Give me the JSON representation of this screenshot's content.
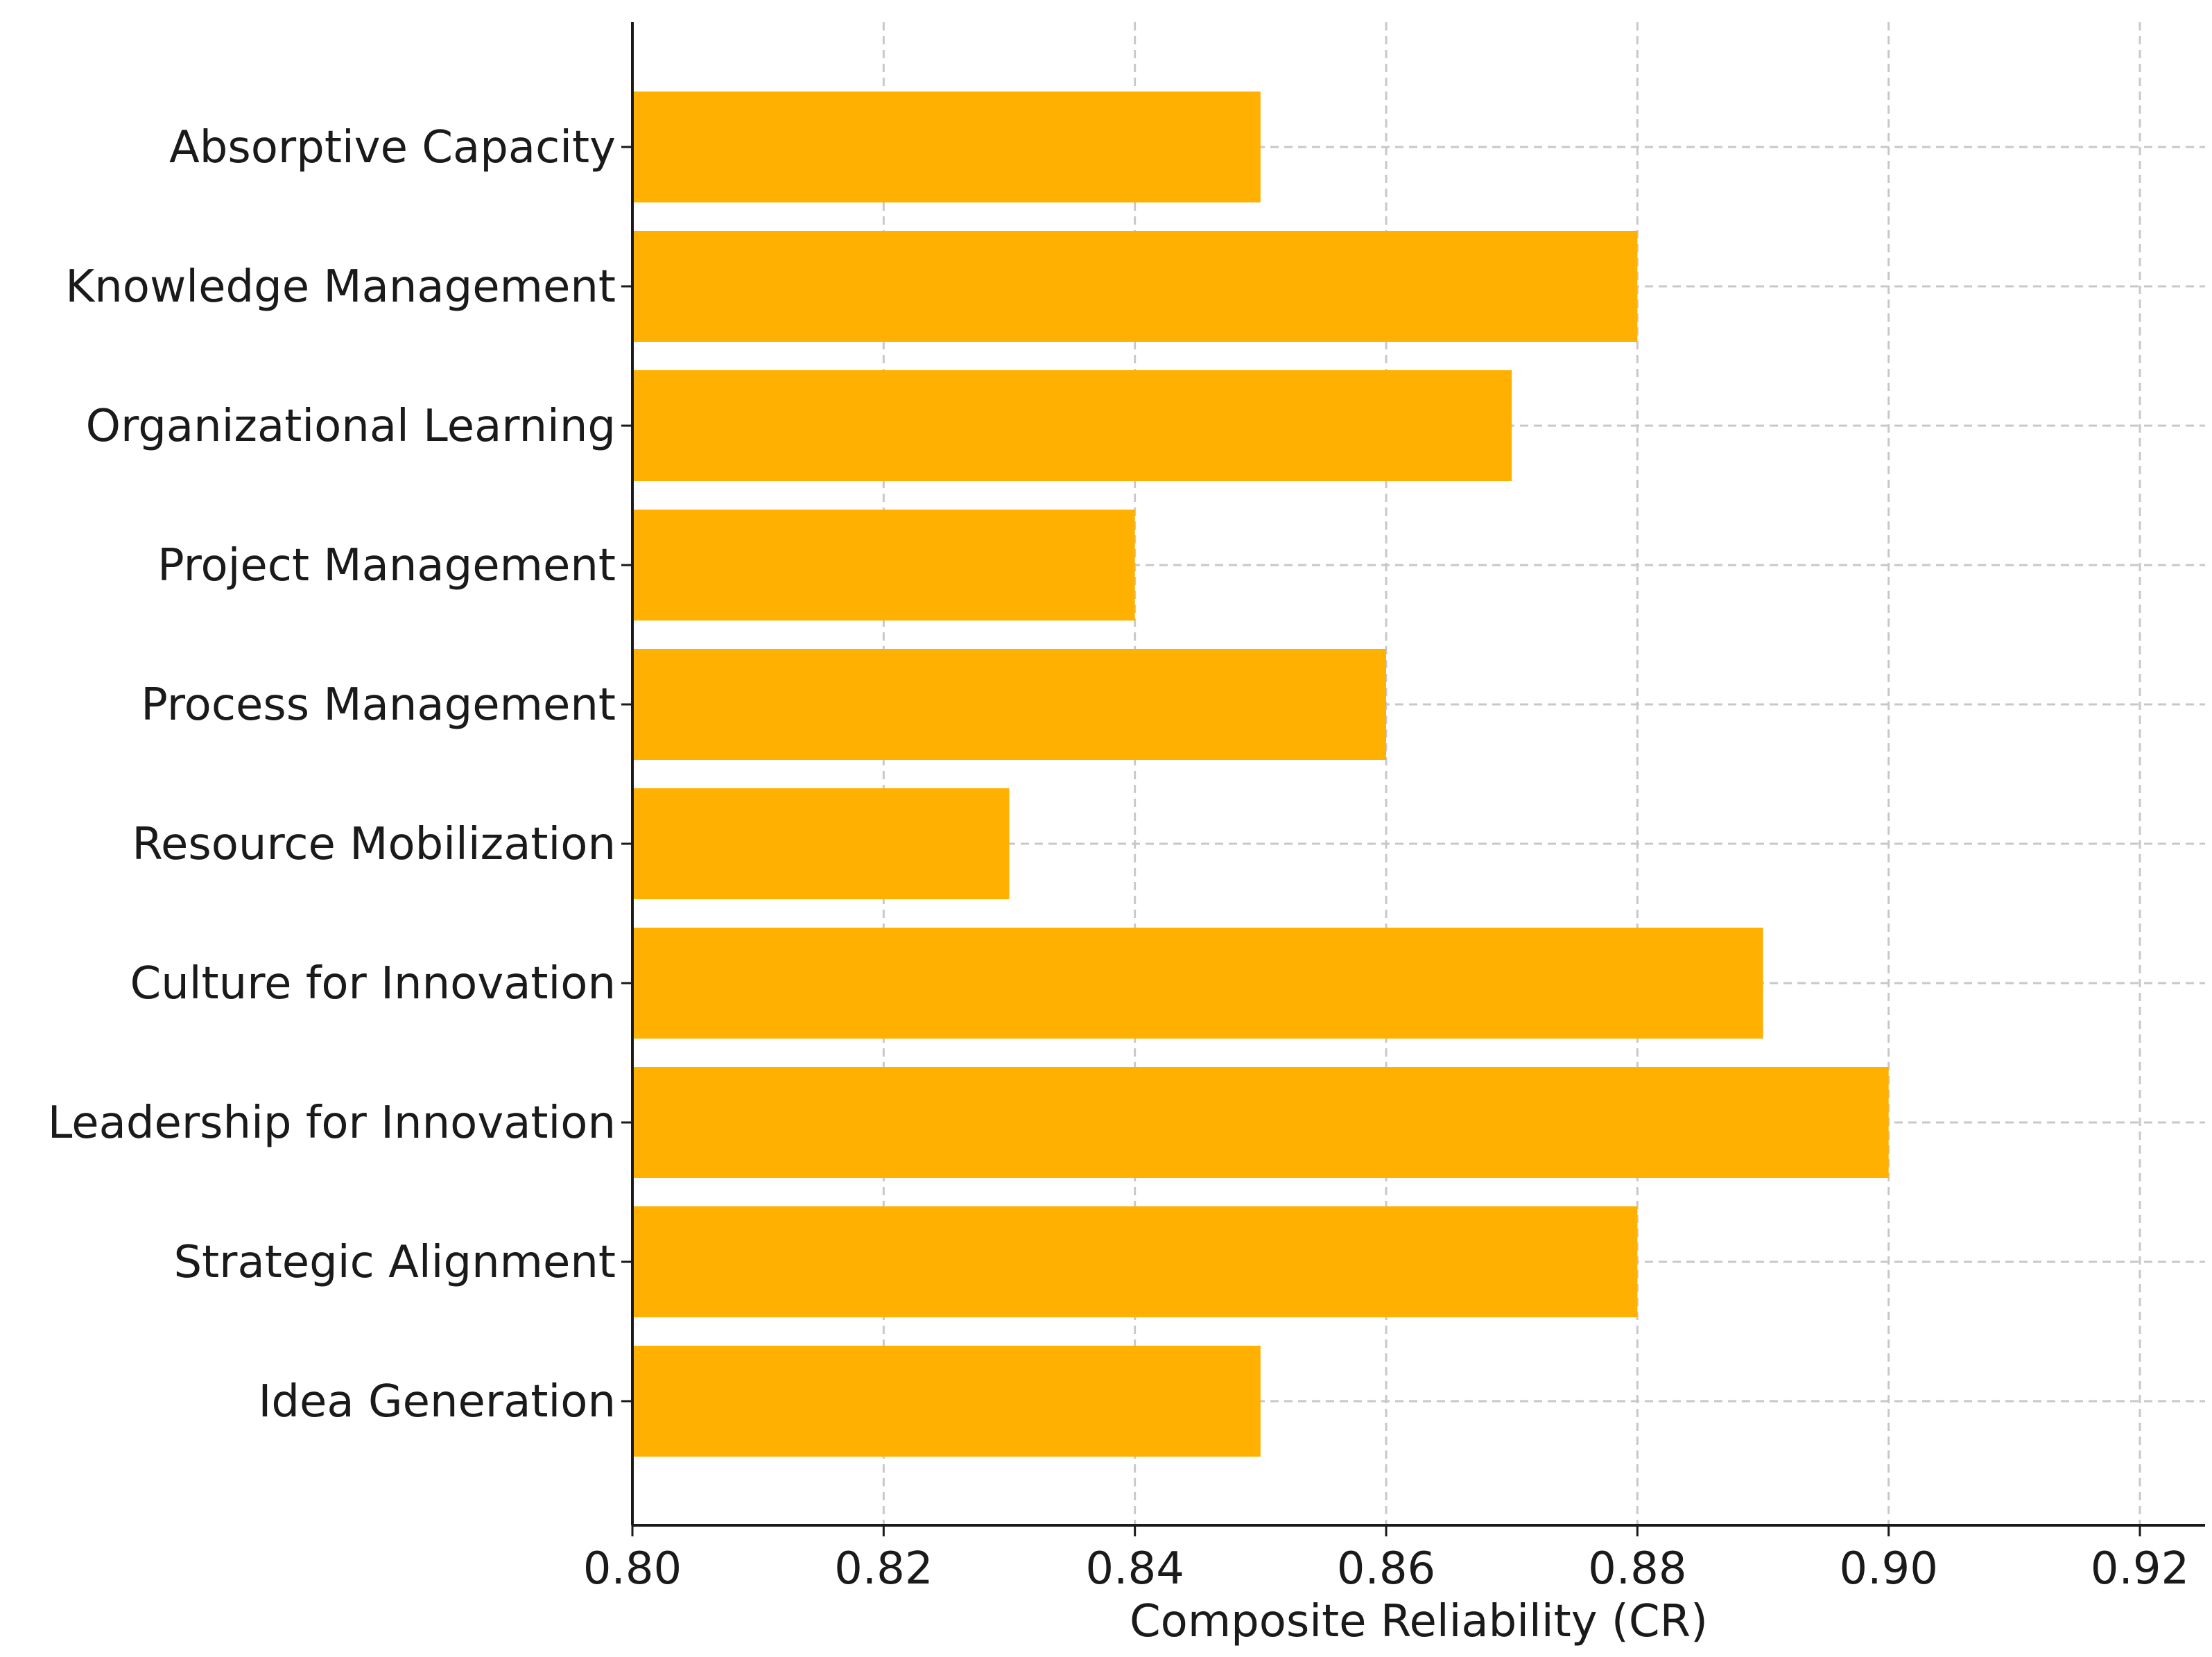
{
  "chart_data": {
    "type": "bar",
    "orientation": "horizontal",
    "categories": [
      "Absorptive Capacity",
      "Knowledge Management",
      "Organizational Learning",
      "Project Management",
      "Process Management",
      "Resource Mobilization",
      "Culture for Innovation",
      "Leadership for Innovation",
      "Strategic Alignment",
      "Idea Generation"
    ],
    "values": [
      0.85,
      0.88,
      0.87,
      0.84,
      0.86,
      0.83,
      0.89,
      0.9,
      0.88,
      0.85
    ],
    "title": "",
    "xlabel": "Composite Reliability (CR)",
    "ylabel": "",
    "xlim": [
      0.8,
      0.925
    ],
    "xticks": [
      "0.80",
      "0.82",
      "0.84",
      "0.86",
      "0.88",
      "0.90",
      "0.92"
    ],
    "bar_color": "#ffb000",
    "grid": true,
    "legend": "none"
  }
}
